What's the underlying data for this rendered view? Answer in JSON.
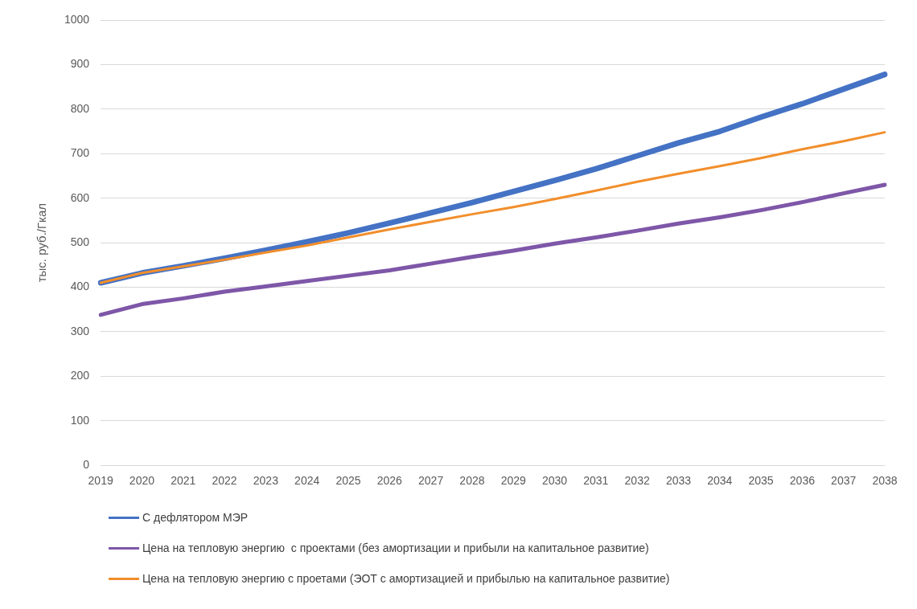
{
  "chart_data": {
    "type": "line",
    "ylabel": "тыс. руб./Гкал",
    "categories": [
      "2019",
      "2020",
      "2021",
      "2022",
      "2023",
      "2024",
      "2025",
      "2026",
      "2027",
      "2028",
      "2029",
      "2030",
      "2031",
      "2032",
      "2033",
      "2034",
      "2035",
      "2036",
      "2037",
      "2038"
    ],
    "series": [
      {
        "name": "С дефлятором МЭР",
        "color": "#4472c4",
        "values": [
          410,
          432,
          448,
          465,
          483,
          502,
          522,
          544,
          567,
          590,
          615,
          640,
          666,
          695,
          724,
          750,
          782,
          812,
          845,
          878
        ]
      },
      {
        "name": "Цена на тепловую энергию  с проектами (без амортизации и прибыли на капитальное развитие)",
        "color": "#7e57a8",
        "values": [
          338,
          362,
          375,
          390,
          402,
          414,
          426,
          438,
          453,
          468,
          482,
          498,
          512,
          527,
          543,
          557,
          573,
          591,
          611,
          630
        ]
      },
      {
        "name": "Цена на тепловую энергию с проетами (ЭОТ с амортизацией и прибылью на капитальное развитие)",
        "color": "#f28e2b",
        "values": [
          410,
          432,
          447,
          462,
          478,
          494,
          512,
          530,
          547,
          564,
          580,
          598,
          617,
          637,
          655,
          672,
          690,
          710,
          728,
          748
        ]
      }
    ],
    "ylim": [
      0,
      1000
    ],
    "yticks": [
      0,
      100,
      200,
      300,
      400,
      500,
      600,
      700,
      800,
      900,
      1000
    ],
    "grid": "y",
    "legend": "bottom",
    "marker": "none",
    "line_style": "solid"
  }
}
